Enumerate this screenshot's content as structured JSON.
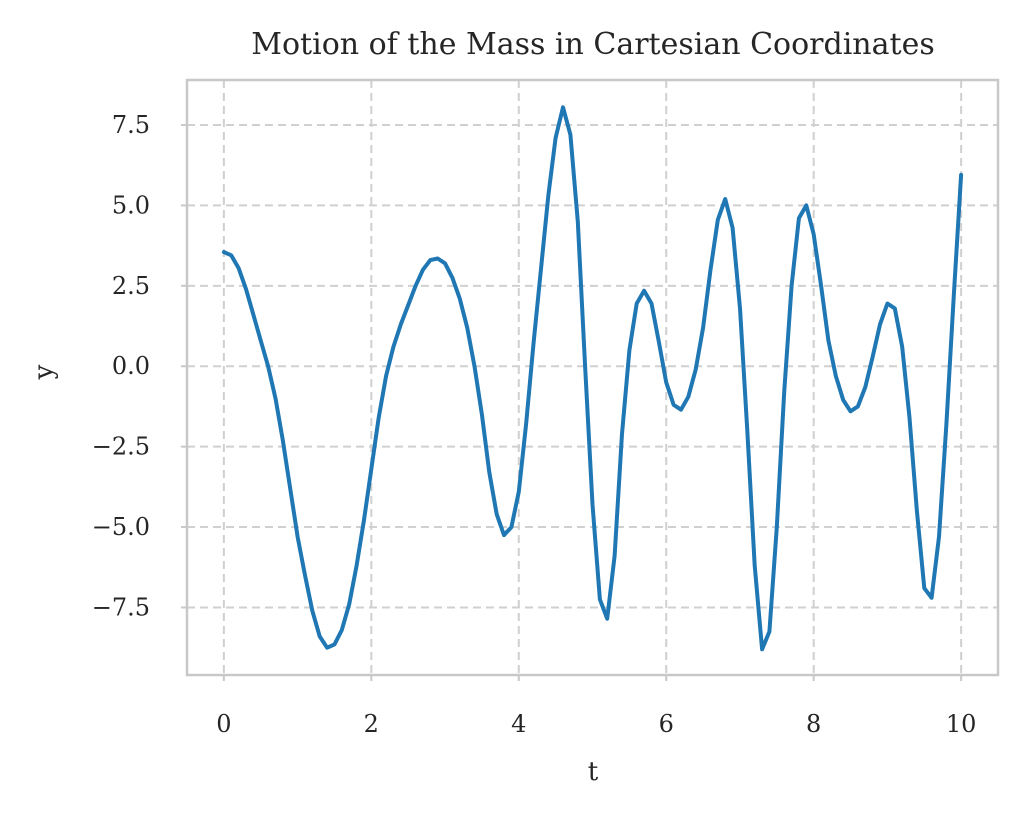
{
  "chart_data": {
    "type": "line",
    "title": "Motion of the Mass in Cartesian Coordinates",
    "xlabel": "t",
    "ylabel": "y",
    "xlim": [
      -0.5,
      10.5
    ],
    "ylim": [
      -9.6,
      8.9
    ],
    "xticks": [
      0,
      2,
      4,
      6,
      8,
      10
    ],
    "xtick_labels": [
      "0",
      "2",
      "4",
      "6",
      "8",
      "10"
    ],
    "yticks": [
      7.5,
      5.0,
      2.5,
      0.0,
      -2.5,
      -5.0,
      -7.5
    ],
    "ytick_labels": [
      "7.5",
      "5.0",
      "2.5",
      "0.0",
      "−2.5",
      "−5.0",
      "−7.5"
    ],
    "grid": true,
    "color": "#1f77b4",
    "series": [
      {
        "x": [
          0.0,
          0.1,
          0.2,
          0.3,
          0.4,
          0.5,
          0.6,
          0.7,
          0.8,
          0.9,
          1.0,
          1.1,
          1.2,
          1.3,
          1.4,
          1.5,
          1.6,
          1.7,
          1.8,
          1.9,
          2.0,
          2.1,
          2.2,
          2.3,
          2.4,
          2.5,
          2.6,
          2.7,
          2.8,
          2.9,
          3.0,
          3.1,
          3.2,
          3.3,
          3.4,
          3.5,
          3.6,
          3.7,
          3.8,
          3.9,
          4.0,
          4.1,
          4.2,
          4.3,
          4.4,
          4.5,
          4.6,
          4.7,
          4.8,
          4.9,
          5.0,
          5.1,
          5.2,
          5.3,
          5.4,
          5.5,
          5.6,
          5.7,
          5.8,
          5.9,
          6.0,
          6.1,
          6.2,
          6.3,
          6.4,
          6.5,
          6.6,
          6.7,
          6.8,
          6.9,
          7.0,
          7.1,
          7.2,
          7.3,
          7.4,
          7.5,
          7.6,
          7.7,
          7.8,
          7.9,
          8.0,
          8.1,
          8.2,
          8.3,
          8.4,
          8.5,
          8.6,
          8.7,
          8.8,
          8.9,
          9.0,
          9.1,
          9.2,
          9.3,
          9.4,
          9.5,
          9.6,
          9.7,
          9.8,
          9.9,
          10.0
        ],
        "y": [
          3.55,
          3.45,
          3.05,
          2.4,
          1.6,
          0.8,
          0.0,
          -1.0,
          -2.3,
          -3.8,
          -5.3,
          -6.5,
          -7.6,
          -8.4,
          -8.75,
          -8.65,
          -8.2,
          -7.4,
          -6.2,
          -4.8,
          -3.2,
          -1.6,
          -0.3,
          0.6,
          1.3,
          1.9,
          2.5,
          3.0,
          3.3,
          3.35,
          3.2,
          2.75,
          2.1,
          1.2,
          0.0,
          -1.5,
          -3.3,
          -4.6,
          -5.25,
          -5.0,
          -3.9,
          -1.8,
          0.7,
          3.0,
          5.3,
          7.1,
          8.05,
          7.2,
          4.5,
          0.0,
          -4.3,
          -7.25,
          -7.85,
          -5.9,
          -2.1,
          0.5,
          1.95,
          2.35,
          1.95,
          0.75,
          -0.5,
          -1.2,
          -1.35,
          -0.95,
          -0.1,
          1.2,
          3.0,
          4.55,
          5.2,
          4.3,
          1.8,
          -2.0,
          -6.2,
          -8.8,
          -8.25,
          -5.0,
          -0.8,
          2.5,
          4.6,
          5.0,
          4.1,
          2.5,
          0.8,
          -0.3,
          -1.05,
          -1.4,
          -1.25,
          -0.65,
          0.3,
          1.3,
          1.95,
          1.8,
          0.6,
          -1.6,
          -4.5,
          -6.9,
          -7.2,
          -5.3,
          -1.8,
          2.2,
          5.95
        ]
      }
    ]
  }
}
